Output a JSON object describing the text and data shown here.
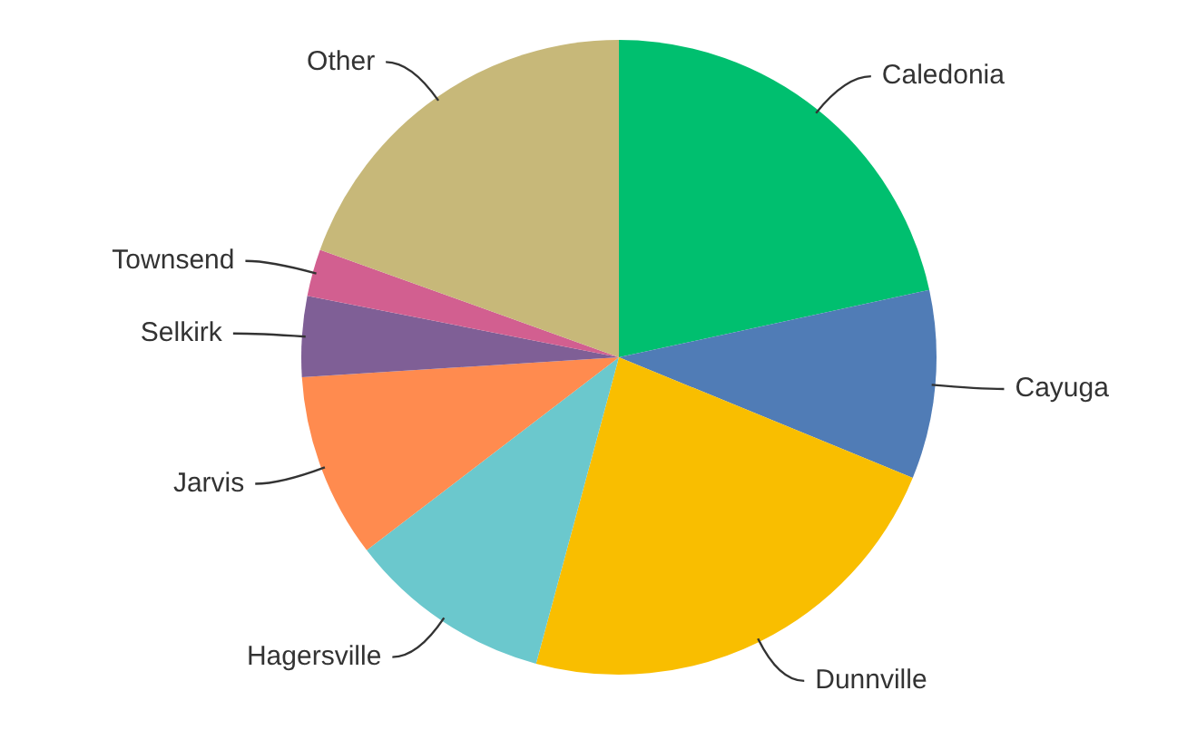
{
  "chart_data": {
    "type": "pie",
    "categories": [
      "Caledonia",
      "Cayuga",
      "Dunnville",
      "Hagersville",
      "Jarvis",
      "Selkirk",
      "Townsend",
      "Other"
    ],
    "values": [
      21.6,
      9.6,
      23,
      10.4,
      9.4,
      4.1,
      2.4,
      19.5
    ],
    "colors": [
      "#00bf6f",
      "#507cb6",
      "#f9be00",
      "#6bc8cd",
      "#ff8b4f",
      "#7f5f96",
      "#d25f90",
      "#c7b879"
    ],
    "legend": false
  }
}
